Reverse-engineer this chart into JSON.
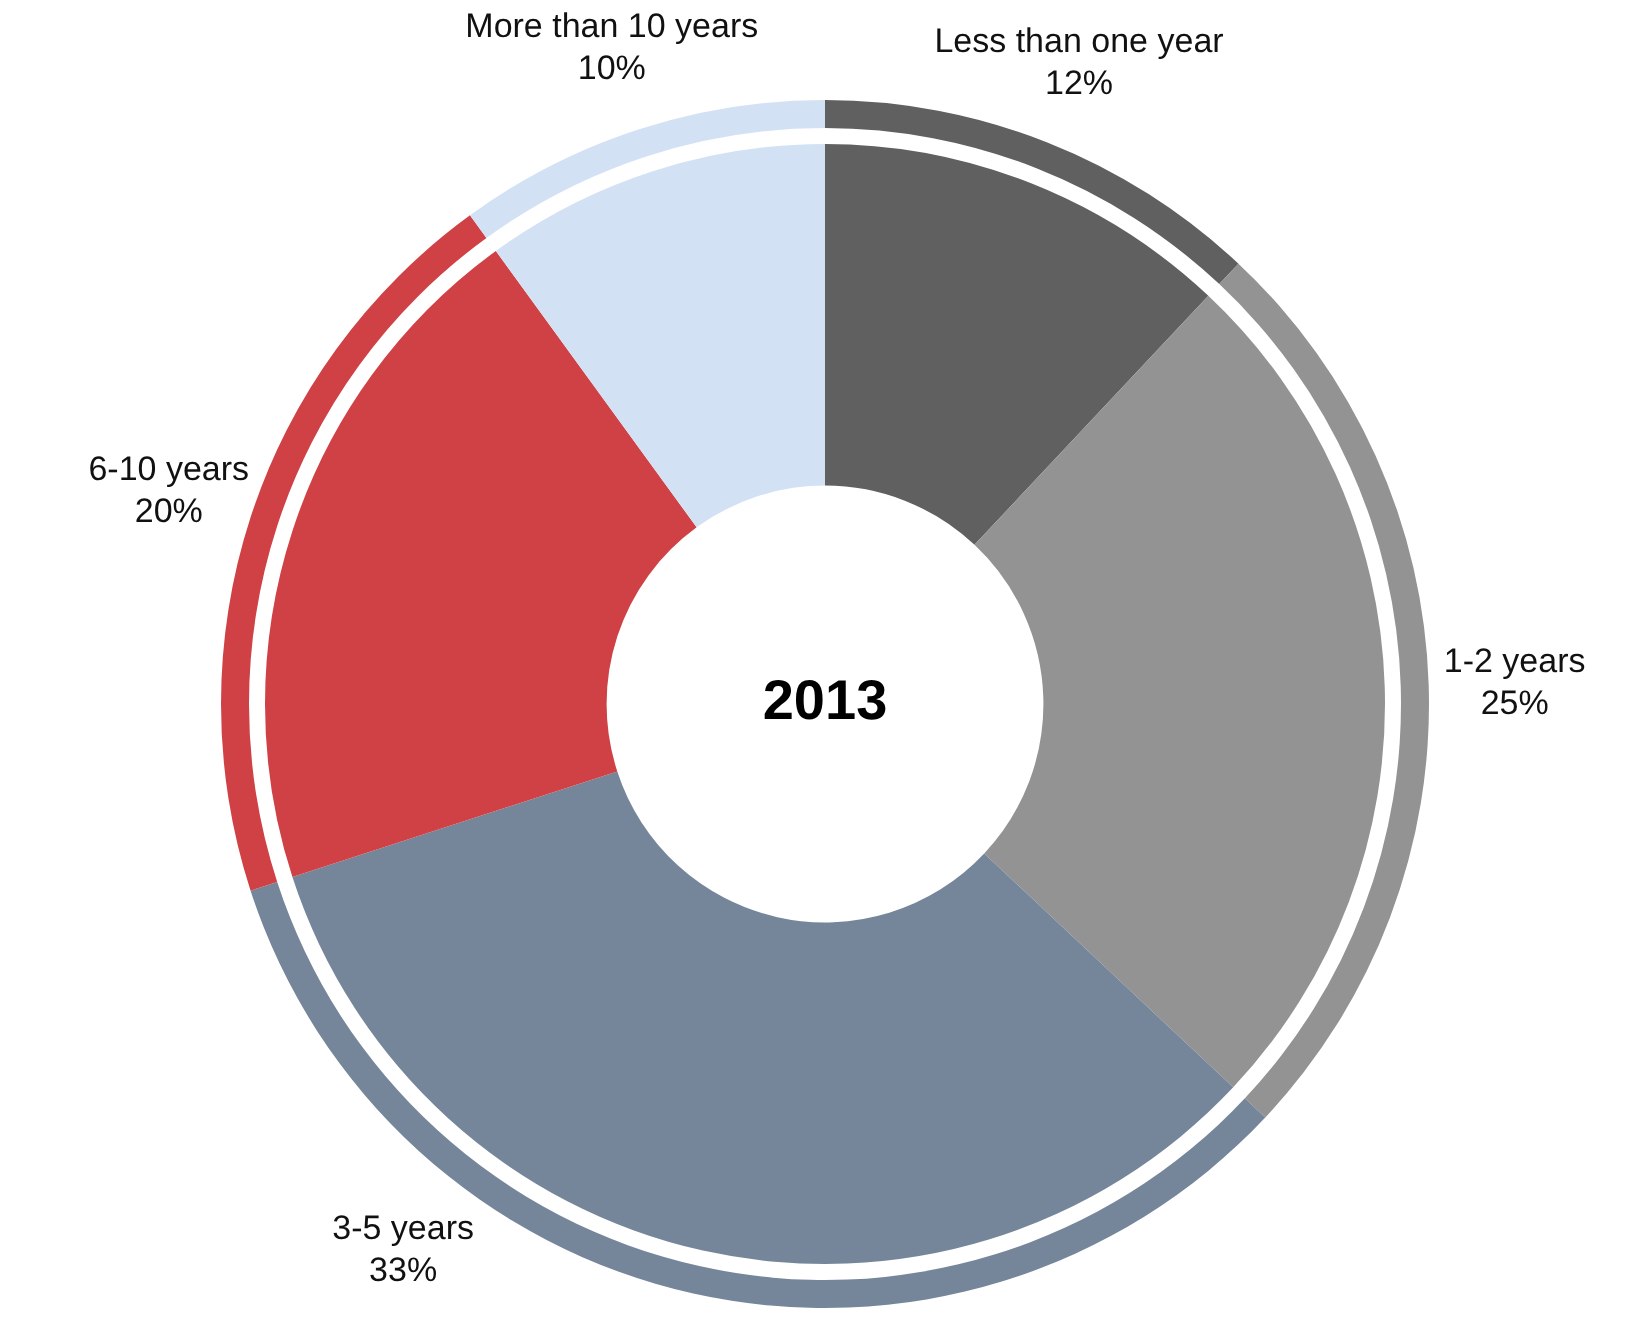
{
  "chart_data": {
    "type": "donut",
    "title": "2013",
    "categories": [
      "Less than one year",
      "1-2 years",
      "3-5 years",
      "6-10 years",
      "More than 10 years"
    ],
    "values": [
      12,
      25,
      33,
      20,
      10
    ],
    "colors": [
      "#606060",
      "#939393",
      "#75869b",
      "#d04145",
      "#d3e1f5"
    ],
    "value_labels": [
      "12%",
      "25%",
      "33%",
      "20%",
      "10%"
    ],
    "legend": false
  }
}
